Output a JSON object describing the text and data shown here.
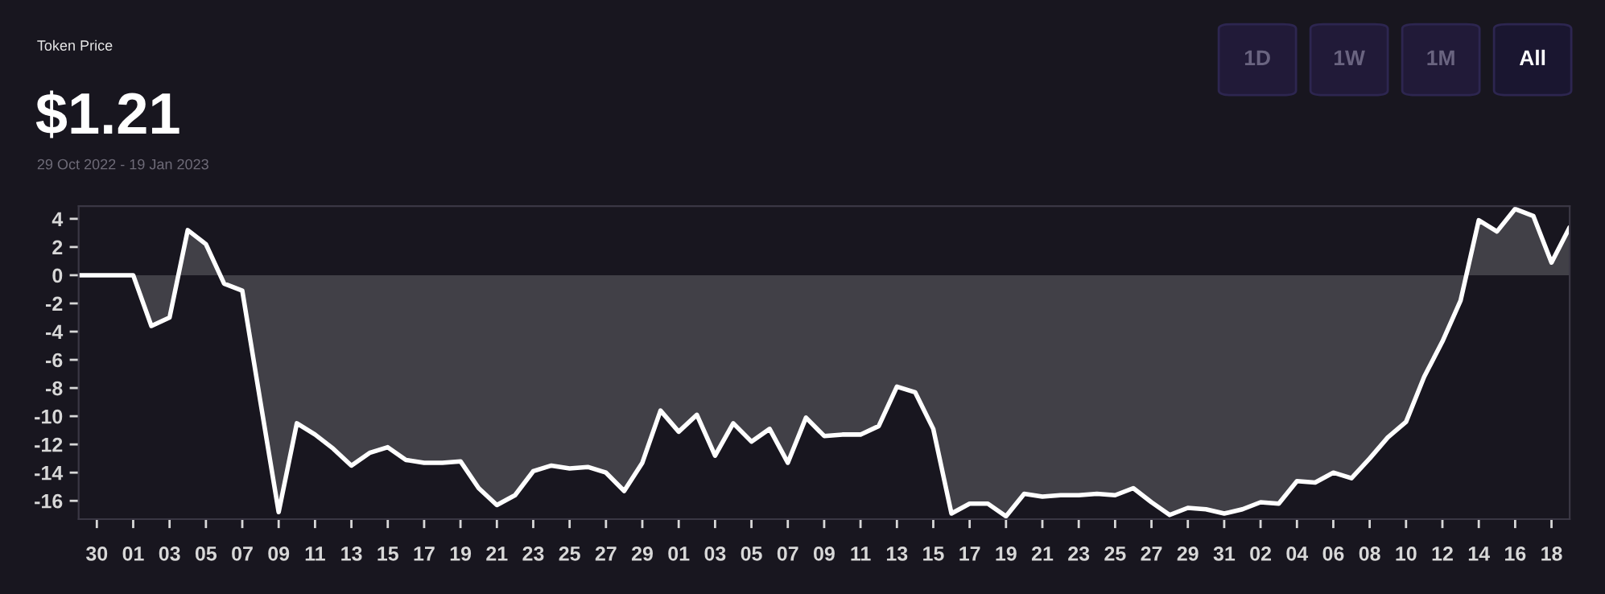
{
  "chart_data": {
    "type": "area",
    "title": "Token Price",
    "subtitle": "$1.21",
    "annotations": [
      "29 Oct 2022 - 19 Jan 2023",
      "1D",
      "1W",
      "1M",
      "All"
    ],
    "x": [
      "2022-10-29",
      "2022-10-30",
      "2022-10-31",
      "2022-11-01",
      "2022-11-02",
      "2022-11-03",
      "2022-11-04",
      "2022-11-05",
      "2022-11-06",
      "2022-11-07",
      "2022-11-08",
      "2022-11-09",
      "2022-11-10",
      "2022-11-11",
      "2022-11-12",
      "2022-11-13",
      "2022-11-14",
      "2022-11-15",
      "2022-11-16",
      "2022-11-17",
      "2022-11-18",
      "2022-11-19",
      "2022-11-20",
      "2022-11-21",
      "2022-11-22",
      "2022-11-23",
      "2022-11-24",
      "2022-11-25",
      "2022-11-26",
      "2022-11-27",
      "2022-11-28",
      "2022-11-29",
      "2022-11-30",
      "2022-12-01",
      "2022-12-02",
      "2022-12-03",
      "2022-12-04",
      "2022-12-05",
      "2022-12-06",
      "2022-12-07",
      "2022-12-08",
      "2022-12-09",
      "2022-12-10",
      "2022-12-11",
      "2022-12-12",
      "2022-12-13",
      "2022-12-14",
      "2022-12-15",
      "2022-12-16",
      "2022-12-17",
      "2022-12-18",
      "2022-12-19",
      "2022-12-20",
      "2022-12-21",
      "2022-12-22",
      "2022-12-23",
      "2022-12-24",
      "2022-12-25",
      "2022-12-26",
      "2022-12-27",
      "2022-12-28",
      "2022-12-29",
      "2022-12-30",
      "2022-12-31",
      "2023-01-01",
      "2023-01-02",
      "2023-01-03",
      "2023-01-04",
      "2023-01-05",
      "2023-01-06",
      "2023-01-07",
      "2023-01-08",
      "2023-01-09",
      "2023-01-10",
      "2023-01-11",
      "2023-01-12",
      "2023-01-13",
      "2023-01-14",
      "2023-01-15",
      "2023-01-16",
      "2023-01-17",
      "2023-01-18",
      "2023-01-19"
    ],
    "series": [
      {
        "color": "#ffffff",
        "values": [
          0,
          0,
          0,
          0,
          -3.6,
          -3.0,
          3.2,
          2.2,
          -0.6,
          -1.1,
          -9.0,
          -16.8,
          -10.5,
          -11.3,
          -12.3,
          -13.5,
          -12.6,
          -12.2,
          -13.1,
          -13.3,
          -13.3,
          -13.2,
          -15.1,
          -16.3,
          -15.6,
          -13.9,
          -13.5,
          -13.7,
          -13.6,
          -14.0,
          -15.3,
          -13.3,
          -9.6,
          -11.1,
          -9.9,
          -12.8,
          -10.5,
          -11.8,
          -10.9,
          -13.3,
          -10.1,
          -11.4,
          -11.3,
          -11.3,
          -10.7,
          -7.9,
          -8.3,
          -10.9,
          -16.9,
          -16.2,
          -16.2,
          -17.1,
          -15.5,
          -15.7,
          -15.6,
          -15.6,
          -15.5,
          -15.6,
          -15.1,
          -16.1,
          -17.0,
          -16.5,
          -16.6,
          -16.9,
          -16.6,
          -16.1,
          -16.2,
          -14.6,
          -14.7,
          -14.0,
          -14.4,
          -13.0,
          -11.5,
          -10.4,
          -7.2,
          -4.7,
          -1.8,
          3.9,
          3.1,
          4.7,
          4.2,
          0.9,
          3.4
        ]
      }
    ],
    "xticks": [
      {
        "value": "2022-10-30",
        "label": "30"
      },
      {
        "value": "2022-11-01",
        "label": "01"
      },
      {
        "value": "2022-11-03",
        "label": "03"
      },
      {
        "value": "2022-11-05",
        "label": "05"
      },
      {
        "value": "2022-11-07",
        "label": "07"
      },
      {
        "value": "2022-11-09",
        "label": "09"
      },
      {
        "value": "2022-11-11",
        "label": "11"
      },
      {
        "value": "2022-11-13",
        "label": "13"
      },
      {
        "value": "2022-11-15",
        "label": "15"
      },
      {
        "value": "2022-11-17",
        "label": "17"
      },
      {
        "value": "2022-11-19",
        "label": "19"
      },
      {
        "value": "2022-11-21",
        "label": "21"
      },
      {
        "value": "2022-11-23",
        "label": "23"
      },
      {
        "value": "2022-11-25",
        "label": "25"
      },
      {
        "value": "2022-11-27",
        "label": "27"
      },
      {
        "value": "2022-11-29",
        "label": "29"
      },
      {
        "value": "2022-12-01",
        "label": "01"
      },
      {
        "value": "2022-12-03",
        "label": "03"
      },
      {
        "value": "2022-12-05",
        "label": "05"
      },
      {
        "value": "2022-12-07",
        "label": "07"
      },
      {
        "value": "2022-12-09",
        "label": "09"
      },
      {
        "value": "2022-12-11",
        "label": "11"
      },
      {
        "value": "2022-12-13",
        "label": "13"
      },
      {
        "value": "2022-12-15",
        "label": "15"
      },
      {
        "value": "2022-12-17",
        "label": "17"
      },
      {
        "value": "2022-12-19",
        "label": "19"
      },
      {
        "value": "2022-12-21",
        "label": "21"
      },
      {
        "value": "2022-12-23",
        "label": "23"
      },
      {
        "value": "2022-12-25",
        "label": "25"
      },
      {
        "value": "2022-12-27",
        "label": "27"
      },
      {
        "value": "2022-12-29",
        "label": "29"
      },
      {
        "value": "2022-12-31",
        "label": "31"
      },
      {
        "value": "2023-01-02",
        "label": "02"
      },
      {
        "value": "2023-01-04",
        "label": "04"
      },
      {
        "value": "2023-01-06",
        "label": "06"
      },
      {
        "value": "2023-01-08",
        "label": "08"
      },
      {
        "value": "2023-01-10",
        "label": "10"
      },
      {
        "value": "2023-01-12",
        "label": "12"
      },
      {
        "value": "2023-01-14",
        "label": "14"
      },
      {
        "value": "2023-01-16",
        "label": "16"
      },
      {
        "value": "2023-01-18",
        "label": "18"
      }
    ],
    "xlim": [
      "2022-10-29",
      "2023-01-19"
    ],
    "ylim": [
      -17.3,
      4.9
    ],
    "yticks": [
      4,
      2,
      0,
      -2,
      -4,
      -6,
      -8,
      -10,
      -12,
      -14,
      -16
    ],
    "grid": false,
    "legend": false
  }
}
